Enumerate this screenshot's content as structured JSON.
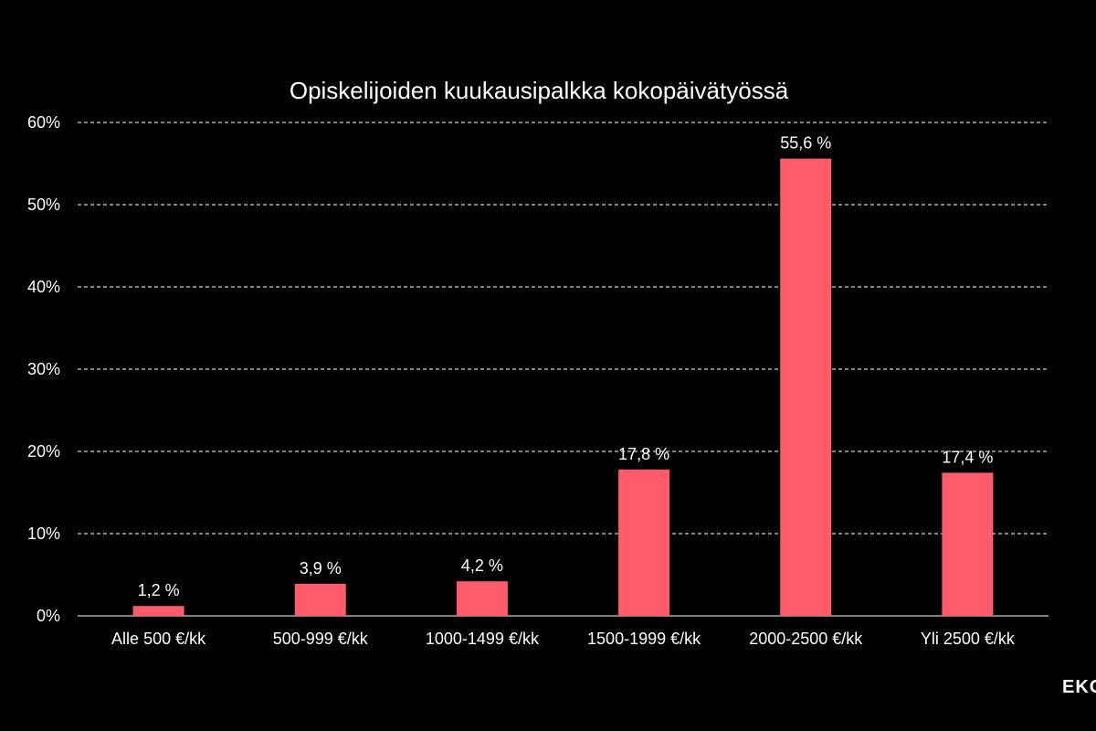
{
  "colors": {
    "background": "#000000",
    "bar": "#ff5b6b",
    "text": "#ffffff",
    "grid": "#ffffff"
  },
  "logo": {
    "text": "EKO"
  },
  "chart_data": {
    "type": "bar",
    "title": "Opiskelijoiden kuukausipalkka kokopäivätyössä",
    "xlabel": "",
    "ylabel": "",
    "categories": [
      "Alle 500 €/kk",
      "500-999 €/kk",
      "1000-1499 €/kk",
      "1500-1999 €/kk",
      "2000-2500 €/kk",
      "Yli 2500 €/kk"
    ],
    "values": [
      1.2,
      3.9,
      4.2,
      17.8,
      55.6,
      17.4
    ],
    "value_labels": [
      "1,2 %",
      "3,9 %",
      "4,2 %",
      "17,8 %",
      "55,6 %",
      "17,4 %"
    ],
    "ylim": [
      0,
      60
    ],
    "yticks": [
      0,
      10,
      20,
      30,
      40,
      50,
      60
    ],
    "ytick_labels": [
      "0%",
      "10%",
      "20%",
      "30%",
      "40%",
      "50%",
      "60%"
    ],
    "grid": true,
    "legend": "none"
  }
}
